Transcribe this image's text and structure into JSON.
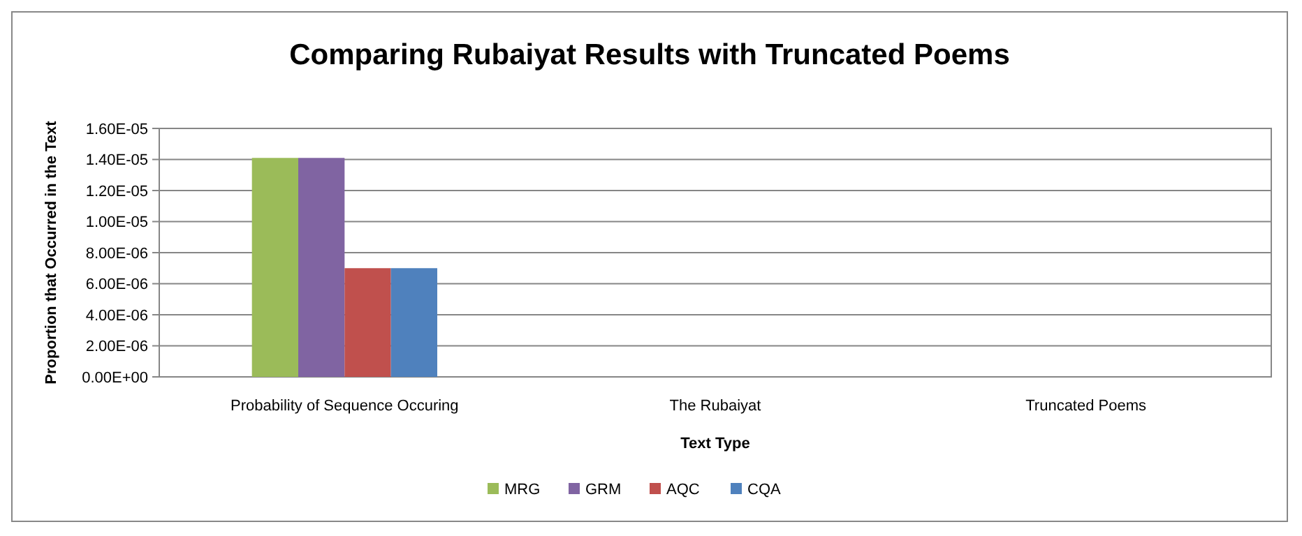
{
  "chart_data": {
    "type": "bar",
    "title": "Comparing Rubaiyat Results with Truncated Poems",
    "xlabel": "Text Type",
    "ylabel": "Proportion that Occurred in the Text",
    "categories": [
      "Probability of Sequence Occuring",
      "The Rubaiyat",
      "Truncated Poems"
    ],
    "series": [
      {
        "name": "MRG",
        "color": "#9bbb59",
        "values": [
          1.41e-05,
          0,
          0
        ]
      },
      {
        "name": "GRM",
        "color": "#8064a2",
        "values": [
          1.41e-05,
          0,
          0
        ]
      },
      {
        "name": "AQC",
        "color": "#c0504d",
        "values": [
          7e-06,
          0,
          0
        ]
      },
      {
        "name": "CQA",
        "color": "#4f81bd",
        "values": [
          7e-06,
          0,
          0
        ]
      }
    ],
    "ylim": [
      0,
      1.6e-05
    ],
    "yticks": [
      {
        "value": 0,
        "label": "0.00E+00"
      },
      {
        "value": 2e-06,
        "label": "2.00E-06"
      },
      {
        "value": 4e-06,
        "label": "4.00E-06"
      },
      {
        "value": 6e-06,
        "label": "6.00E-06"
      },
      {
        "value": 8e-06,
        "label": "8.00E-06"
      },
      {
        "value": 1e-05,
        "label": "1.00E-05"
      },
      {
        "value": 1.2e-05,
        "label": "1.20E-05"
      },
      {
        "value": 1.4e-05,
        "label": "1.40E-05"
      },
      {
        "value": 1.6e-05,
        "label": "1.60E-05"
      }
    ],
    "grid": "y",
    "legend": "bottom"
  }
}
